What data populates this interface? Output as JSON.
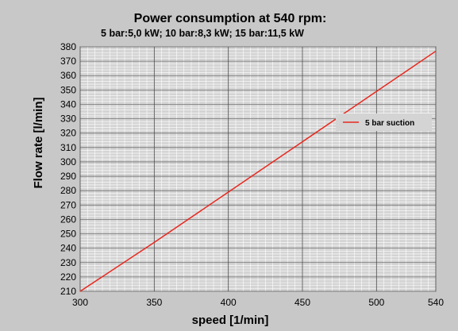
{
  "chart_data": {
    "type": "line",
    "title": "Power consumption at 540 rpm:",
    "subtitle": "5 bar:5,0 kW; 10 bar:8,3 kW; 15 bar:11,5 kW",
    "xlabel": "speed [1/min]",
    "ylabel": "Flow rate [l/min]",
    "xlim": [
      300,
      540
    ],
    "ylim": [
      210,
      380
    ],
    "x_ticks": [
      300,
      350,
      400,
      450,
      500,
      540
    ],
    "y_ticks": [
      210,
      220,
      230,
      240,
      250,
      260,
      270,
      280,
      290,
      300,
      310,
      320,
      330,
      340,
      350,
      360,
      370,
      380
    ],
    "grid": true,
    "legend_position": "right",
    "series": [
      {
        "name": "5 bar suction",
        "color": "#e8281e",
        "x": [
          300,
          350,
          400,
          450,
          500,
          540
        ],
        "y": [
          210,
          244,
          279,
          314,
          349,
          377
        ]
      }
    ]
  }
}
